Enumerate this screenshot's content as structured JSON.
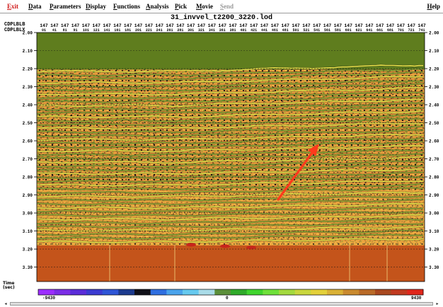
{
  "menu": {
    "items": [
      {
        "id": "exit",
        "label": "Exit",
        "color": "#d01818"
      },
      {
        "id": "data",
        "label": "Data"
      },
      {
        "id": "parameters",
        "label": "Parameters"
      },
      {
        "id": "display",
        "label": "Display"
      },
      {
        "id": "functions",
        "label": "Functions"
      },
      {
        "id": "analysis",
        "label": "Analysis"
      },
      {
        "id": "pick",
        "label": "Pick"
      },
      {
        "id": "movie",
        "label": "Movie"
      },
      {
        "id": "send",
        "label": "Send",
        "disabled": true,
        "color": "#9a9a9a"
      }
    ],
    "help_label": "Help"
  },
  "plot": {
    "title": "31_invvel_t2200_3220.lod",
    "header_row1_label": "CDPLBLB",
    "header_row2_label": "CDPLBLX",
    "cdplblb_value": "147",
    "cdplblx_values": [
      "01",
      "41",
      "81",
      "91",
      "101",
      "121",
      "141",
      "161",
      "181",
      "201",
      "221",
      "241",
      "261",
      "281",
      "301",
      "321",
      "341",
      "361",
      "381",
      "401",
      "421",
      "441",
      "461",
      "481",
      "501",
      "521",
      "541",
      "561",
      "581",
      "601",
      "621",
      "641",
      "661",
      "681",
      "701",
      "721",
      "741"
    ],
    "time_axis": {
      "label_line1": "Time",
      "label_line2": "(sec)",
      "ticks": [
        "2.00",
        "2.10",
        "2.20",
        "2.30",
        "2.40",
        "2.50",
        "2.60",
        "2.70",
        "2.80",
        "2.90",
        "3.00",
        "3.10",
        "3.20",
        "3.30"
      ],
      "range": [
        2.0,
        3.38
      ]
    },
    "layers": {
      "top_band_color": "#5f7d1e",
      "bottom_band_color": "#c4541b",
      "reflector_yellow": "#f0ea4c",
      "background_orange": "#e39a3c"
    },
    "annotation": {
      "type": "arrow",
      "color": "#ff3a1c"
    }
  },
  "colorbar": {
    "min_label": "-9430",
    "mid_label": "0",
    "max_label": "9430",
    "stops": [
      "#9c2fff",
      "#7b2ee6",
      "#5a2dd8",
      "#3b3bd1",
      "#2e55d6",
      "#1c3a8e",
      "#101018",
      "#2f6fe0",
      "#4aa3ec",
      "#66c9ef",
      "#a9dbe8",
      "#5b8f3a",
      "#2faa2a",
      "#3fd42e",
      "#6ee03a",
      "#a3d93f",
      "#c8d63e",
      "#e3d03a",
      "#d9b136",
      "#c98a2f",
      "#b96a28",
      "#a8481f",
      "#c03a20",
      "#e0271c"
    ]
  },
  "scrollbar": {
    "left_arrow": "◂",
    "right_arrow": "▸"
  }
}
